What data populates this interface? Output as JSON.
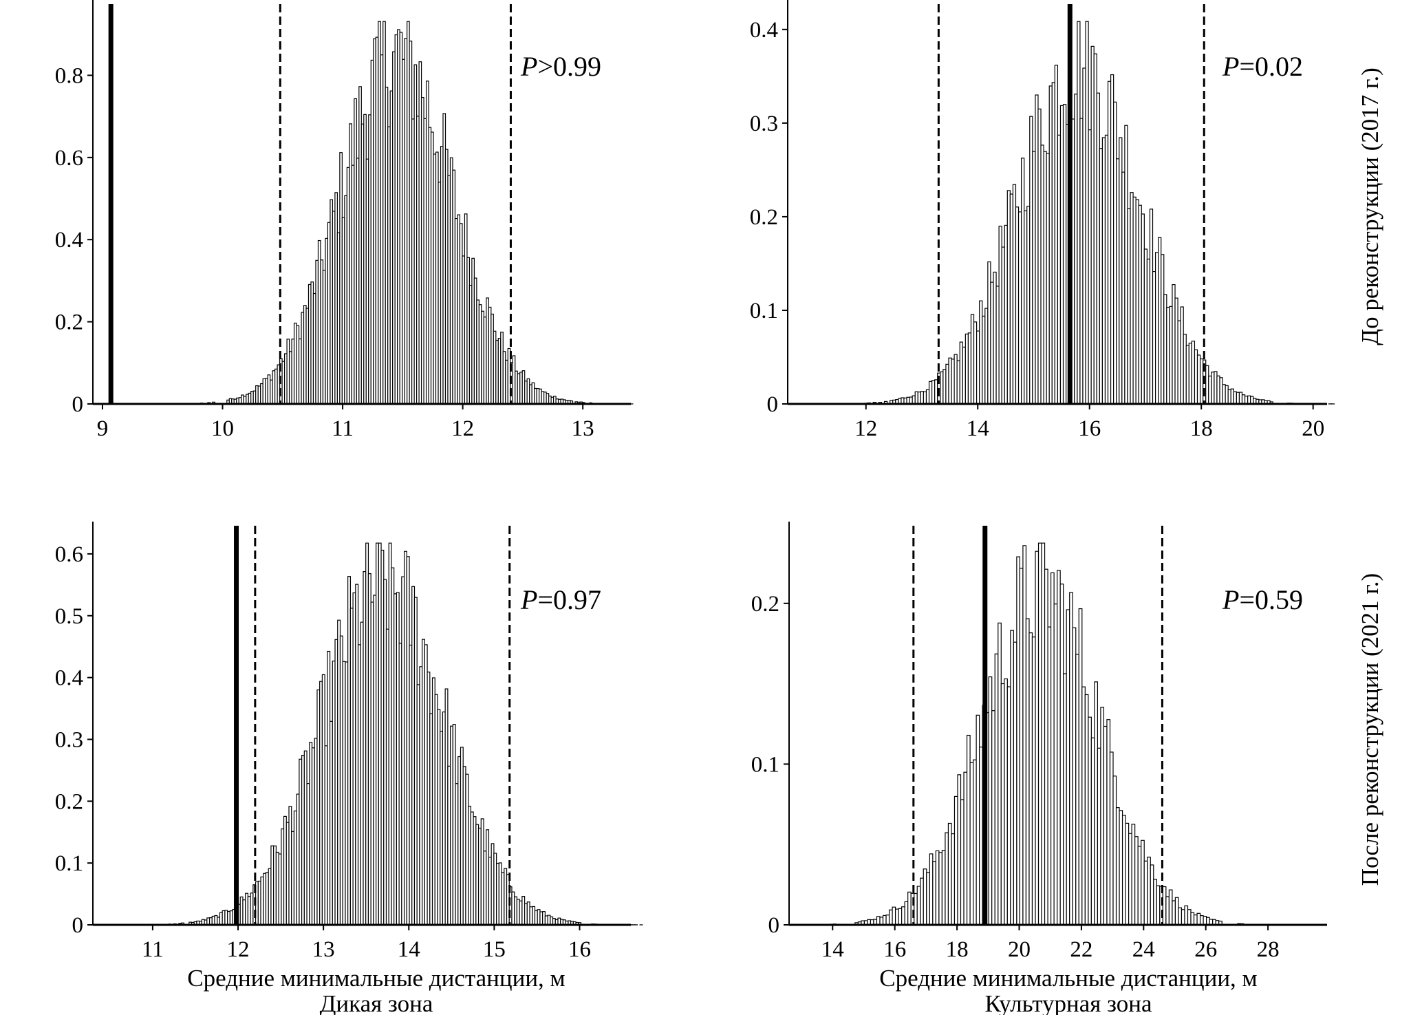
{
  "row_labels": [
    "До реконструкции (2017 г.)",
    "После реконструкции (2021 г.)"
  ],
  "column_labels": [
    "Дикая зона",
    "Культурная зона"
  ],
  "xlabel": "Средние минимальные дистанции, м",
  "chart_data": [
    {
      "type": "bar",
      "panel": "wild-2017",
      "p_label": "P",
      "p_value_text": ">0.99",
      "observed_value": 9.07,
      "ci_bounds": [
        10.48,
        12.4
      ],
      "distribution": {
        "mean": 11.45,
        "sd": 0.47,
        "bin_width": 0.02
      },
      "xlim": [
        8.92,
        13.4
      ],
      "ylim": [
        0,
        0.98
      ],
      "xticks": [
        9,
        10,
        11,
        12,
        13
      ],
      "yticks": [
        0,
        0.2,
        0.4,
        0.6,
        0.8
      ],
      "ytick_labels": [
        "0",
        "0.2",
        "0.4",
        "0.6",
        "0.8"
      ]
    },
    {
      "type": "bar",
      "panel": "cultural-2017",
      "p_label": "P",
      "p_value_text": "=0.02",
      "observed_value": 15.65,
      "ci_bounds": [
        13.3,
        18.05
      ],
      "distribution": {
        "mean": 15.8,
        "sd": 1.1,
        "bin_width": 0.05
      },
      "xlim": [
        10.6,
        20.25
      ],
      "ylim": [
        0,
        0.43
      ],
      "xticks": [
        12,
        14,
        16,
        18,
        20
      ],
      "yticks": [
        0,
        0.1,
        0.2,
        0.3,
        0.4
      ],
      "ytick_labels": [
        "0",
        "0.1",
        "0.2",
        "0.3",
        "0.4"
      ]
    },
    {
      "type": "bar",
      "panel": "wild-2021",
      "p_label": "P",
      "p_value_text": "=0.97",
      "observed_value": 11.98,
      "ci_bounds": [
        12.2,
        15.18
      ],
      "distribution": {
        "mean": 13.7,
        "sd": 0.72,
        "bin_width": 0.03
      },
      "xlim": [
        10.3,
        16.6
      ],
      "ylim": [
        0,
        0.65
      ],
      "xticks": [
        11,
        12,
        13,
        14,
        15,
        16
      ],
      "yticks": [
        0,
        0.1,
        0.2,
        0.3,
        0.4,
        0.5,
        0.6
      ],
      "ytick_labels": [
        "0",
        "0.1",
        "0.2",
        "0.3",
        "0.4",
        "0.5",
        "0.6"
      ]
    },
    {
      "type": "bar",
      "panel": "cultural-2021",
      "p_label": "P",
      "p_value_text": "=0.59",
      "observed_value": 18.9,
      "ci_bounds": [
        16.6,
        24.6
      ],
      "distribution": {
        "mean": 20.7,
        "sd": 1.9,
        "bin_width": 0.1
      },
      "xlim": [
        12.6,
        29.9
      ],
      "ylim": [
        0,
        0.25
      ],
      "xticks": [
        14,
        16,
        18,
        20,
        22,
        24,
        26,
        28
      ],
      "yticks": [
        0,
        0.1,
        0.2
      ],
      "ytick_labels": [
        "0",
        "0.1",
        "0.2"
      ]
    }
  ]
}
